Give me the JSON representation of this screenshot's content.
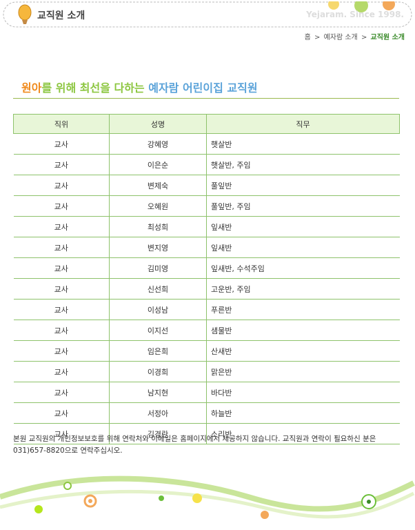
{
  "header": {
    "title": "교직원 소개",
    "slogan": "Yejaram. Since 1998."
  },
  "breadcrumb": {
    "items": [
      "홈",
      "예자람 소개",
      "교직원 소개"
    ],
    "separator": ">"
  },
  "headline": {
    "part1": "원아",
    "part2": "를 위해 최선을 다하는",
    "part3": "예자람 어린이집 교직원"
  },
  "table": {
    "columns": [
      "직위",
      "성명",
      "직무"
    ],
    "rows": [
      [
        "교사",
        "강혜영",
        "햇살반"
      ],
      [
        "교사",
        "이은순",
        "햇살반, 주임"
      ],
      [
        "교사",
        "변제숙",
        "풀잎반"
      ],
      [
        "교사",
        "오혜원",
        "풀잎반, 주임"
      ],
      [
        "교사",
        "최성희",
        "잎새반"
      ],
      [
        "교사",
        "변지영",
        "잎새반"
      ],
      [
        "교사",
        "김미영",
        "잎새반, 수석주임"
      ],
      [
        "교사",
        "신선희",
        "고운반, 주임"
      ],
      [
        "교사",
        "이성남",
        "푸른반"
      ],
      [
        "교사",
        "이지선",
        "샘물반"
      ],
      [
        "교사",
        "임은희",
        "산새반"
      ],
      [
        "교사",
        "이경희",
        "맑은반"
      ],
      [
        "교사",
        "남지현",
        "바다반"
      ],
      [
        "교사",
        "서정아",
        "하늘반"
      ],
      [
        "교사",
        "김경란",
        "소리반"
      ]
    ]
  },
  "note": "본원 교직원의 개인정보보호를 위해 연락처와 이메일은 홈페이지에서 제공하지 않습니다. 교직원과 연락이 필요하신 분은 031)657-8820으로 연락주십시오."
}
